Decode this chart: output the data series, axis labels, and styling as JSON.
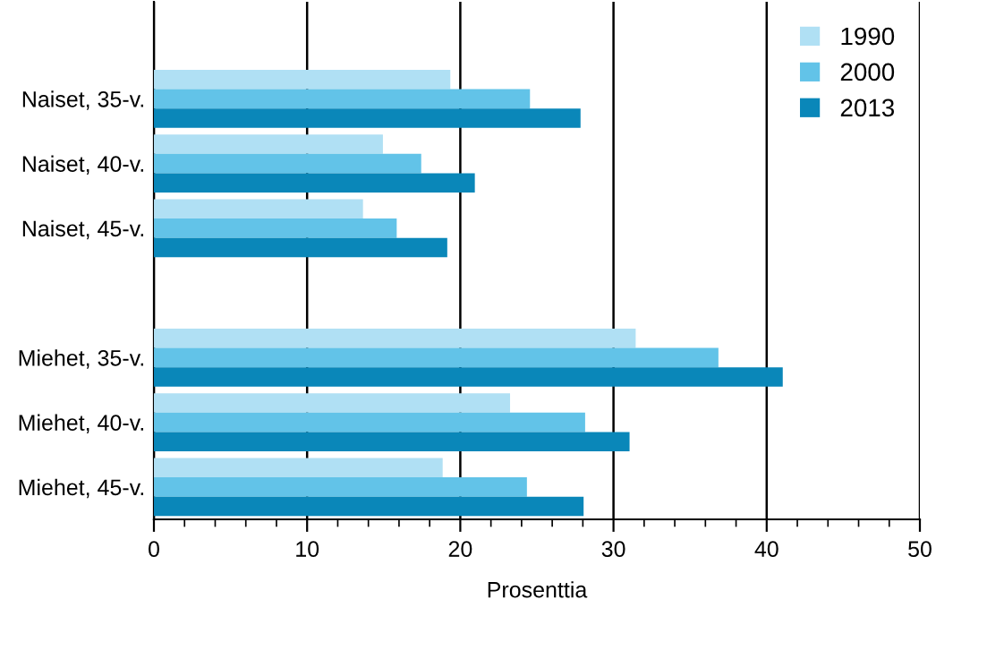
{
  "chart_data": {
    "type": "bar",
    "orientation": "horizontal",
    "xlabel": "Prosenttia",
    "categories": [
      null,
      "Naiset, 35-v.",
      "Naiset, 40-v.",
      "Naiset, 45-v.",
      null,
      "Miehet, 35-v.",
      "Miehet, 40-v.",
      "Miehet, 45-v."
    ],
    "series": [
      {
        "name": "1990",
        "color": "#b0e0f4",
        "values": [
          null,
          19.3,
          14.9,
          13.6,
          null,
          31.4,
          23.2,
          18.8
        ]
      },
      {
        "name": "2000",
        "color": "#62c3e8",
        "values": [
          null,
          24.5,
          17.4,
          15.8,
          null,
          36.8,
          28.1,
          24.3
        ]
      },
      {
        "name": "2013",
        "color": "#0a87b9",
        "values": [
          null,
          27.8,
          20.9,
          19.1,
          null,
          41.0,
          31.0,
          28.0
        ]
      }
    ],
    "xlim": [
      0,
      50
    ],
    "xticks": [
      0,
      {
        "value": 2,
        "label": null
      },
      {
        "value": 4,
        "label": null
      },
      {
        "value": 6,
        "label": null
      },
      {
        "value": 8,
        "label": null
      },
      10,
      {
        "value": 12,
        "label": null
      },
      {
        "value": 14,
        "label": null
      },
      {
        "value": 16,
        "label": null
      },
      {
        "value": 18,
        "label": null
      },
      20,
      {
        "value": 22,
        "label": null
      },
      {
        "value": 24,
        "label": null
      },
      {
        "value": 26,
        "label": null
      },
      {
        "value": 28,
        "label": null
      },
      30,
      {
        "value": 32,
        "label": null
      },
      {
        "value": 34,
        "label": null
      },
      {
        "value": 36,
        "label": null
      },
      {
        "value": 38,
        "label": null
      },
      40,
      {
        "value": 42,
        "label": null
      },
      {
        "value": 44,
        "label": null
      },
      {
        "value": 46,
        "label": null
      },
      {
        "value": 48,
        "label": null
      },
      50
    ],
    "grid": "x",
    "legend": "top right"
  }
}
